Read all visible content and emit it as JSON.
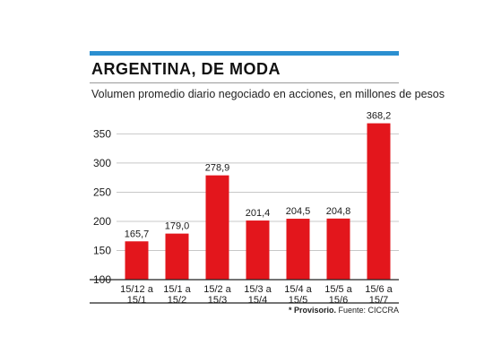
{
  "title": "ARGENTINA, DE MODA",
  "subtitle": "Volumen promedio diario negociado en acciones, en millones de pesos",
  "note": {
    "emphasis": "* Provisorio.",
    "source": " Fuente: CICCRA"
  },
  "colors": {
    "bar": "#e3161c",
    "accent": "#2b8fd0",
    "grid": "#c8c8c8"
  },
  "chart_data": {
    "type": "bar",
    "title": "ARGENTINA, DE MODA",
    "subtitle": "Volumen promedio diario negociado en acciones, en millones de pesos",
    "categories": [
      "15/12 a 15/1",
      "15/1 a 15/2",
      "15/2 a 15/3",
      "15/3 a 15/4",
      "15/4 a 15/5",
      "15/5 a 15/6",
      "15/6 a 15/7"
    ],
    "category_lines": [
      [
        "15/12 a",
        "15/1"
      ],
      [
        "15/1 a",
        "15/2"
      ],
      [
        "15/2 a",
        "15/3"
      ],
      [
        "15/3 a",
        "15/4"
      ],
      [
        "15/4 a",
        "15/5"
      ],
      [
        "15/5 a",
        "15/6"
      ],
      [
        "15/6 a",
        "15/7"
      ]
    ],
    "values": [
      165.7,
      179.0,
      278.9,
      201.4,
      204.5,
      204.8,
      368.2
    ],
    "value_labels": [
      "165,7",
      "179,0",
      "278,9",
      "201,4",
      "204,5",
      "204,8",
      "368,2"
    ],
    "yticks": [
      100,
      150,
      200,
      250,
      300,
      350
    ],
    "ylim": [
      100,
      375
    ],
    "grid": true,
    "xlabel": "",
    "ylabel": ""
  }
}
